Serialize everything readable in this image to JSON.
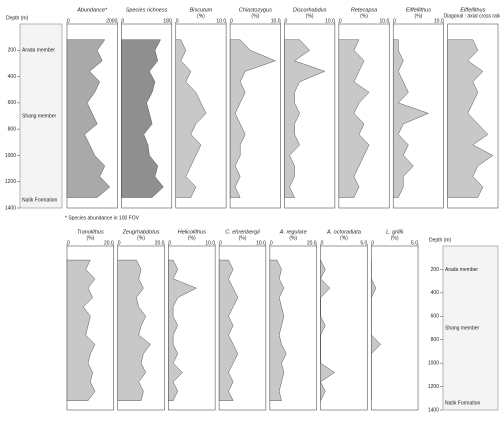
{
  "chart_data": {
    "type": "depth-profile",
    "depth_label": "Depth (m)",
    "ylim": [
      0,
      1400
    ],
    "yticks": [
      200,
      400,
      600,
      800,
      1000,
      1200,
      1400
    ],
    "depth": [
      120,
      200,
      280,
      360,
      440,
      520,
      600,
      680,
      760,
      840,
      920,
      1000,
      1080,
      1160,
      1240,
      1320
    ],
    "lithology": {
      "upper": "Arada member",
      "middle": "Shang member",
      "lower": "Natik Formation"
    },
    "footnote": "* Species abundance in 100 FOV",
    "color": "#c8c8c8",
    "panels": [
      {
        "name": "Abundance*",
        "xlim": [
          0,
          2000
        ],
        "xticks": [
          0,
          2000
        ],
        "color": "#a9a9a9",
        "values": [
          1500,
          1200,
          1400,
          900,
          1300,
          1100,
          800,
          1000,
          1200,
          700,
          900,
          1100,
          1500,
          1300,
          1700,
          1200
        ]
      },
      {
        "name": "Species richness",
        "xlim": [
          0,
          180
        ],
        "xticks": [
          0,
          180
        ],
        "color": "#8f8f8f",
        "values": [
          140,
          120,
          130,
          100,
          120,
          110,
          90,
          100,
          110,
          80,
          95,
          100,
          130,
          120,
          150,
          110
        ]
      },
      {
        "name": "Biscutum",
        "unit": "(%)",
        "xlim": [
          0,
          10
        ],
        "xticks": [
          0,
          {
            "value": 10,
            "label": "10.0"
          }
        ],
        "values": [
          1,
          2,
          1,
          3,
          2,
          4,
          5,
          6,
          4,
          3,
          5,
          4,
          3,
          2,
          4,
          3
        ]
      },
      {
        "name": "Chiastozygus",
        "unit": "(%)",
        "xlim": [
          0,
          10
        ],
        "xticks": [
          0,
          {
            "value": 10,
            "label": "10.0"
          }
        ],
        "values": [
          2,
          4,
          9,
          3,
          2,
          3,
          2,
          1,
          2,
          3,
          2,
          2,
          1,
          2,
          1,
          2
        ]
      },
      {
        "name": "Discorhabdus",
        "unit": "(%)",
        "xlim": [
          0,
          10
        ],
        "xticks": [
          0,
          {
            "value": 10,
            "label": "10.0"
          }
        ],
        "values": [
          3,
          5,
          2,
          8,
          3,
          2,
          2,
          3,
          2,
          2,
          3,
          1,
          2,
          2,
          1,
          2
        ]
      },
      {
        "name": "Retecapsa",
        "unit": "(%)",
        "xlim": [
          0,
          10
        ],
        "xticks": [
          0,
          {
            "value": 10,
            "label": "10.0"
          }
        ],
        "values": [
          4,
          3,
          5,
          4,
          3,
          6,
          4,
          3,
          5,
          4,
          6,
          5,
          4,
          3,
          4,
          3
        ]
      },
      {
        "name": "Eiffellithus",
        "unit": "(%)",
        "xlim": [
          0,
          10
        ],
        "xticks": [
          0,
          {
            "value": 10,
            "label": "10.0"
          }
        ],
        "values": [
          1,
          1,
          2,
          1,
          2,
          3,
          1,
          7,
          2,
          1,
          3,
          2,
          4,
          2,
          2,
          1
        ]
      },
      {
        "name": "Eiffellithus",
        "unit": "Diagonal : axial cross ratio",
        "xlim": [
          0,
          1
        ],
        "xticks": [],
        "values": [
          0.5,
          0.6,
          0.4,
          0.7,
          0.5,
          0.6,
          0.5,
          0.4,
          0.6,
          0.8,
          0.5,
          0.9,
          0.6,
          0.5,
          0.7,
          0.6
        ]
      },
      {
        "name": "Tranolithus",
        "unit": "(%)",
        "xlim": [
          0,
          20
        ],
        "xticks": [
          0,
          {
            "value": 20,
            "label": "20.0"
          }
        ],
        "values": [
          10,
          8,
          12,
          9,
          11,
          7,
          10,
          9,
          8,
          12,
          10,
          9,
          11,
          10,
          12,
          9
        ]
      },
      {
        "name": "Zeugrhabdotus",
        "unit": "(%)",
        "xlim": [
          0,
          20
        ],
        "xticks": [
          0,
          {
            "value": 20,
            "label": "20.0"
          }
        ],
        "values": [
          8,
          10,
          9,
          11,
          8,
          9,
          12,
          10,
          9,
          14,
          11,
          10,
          12,
          9,
          11,
          10
        ]
      },
      {
        "name": "Helicolithus",
        "unit": "(%)",
        "xlim": [
          0,
          10
        ],
        "xticks": [
          0,
          {
            "value": 10,
            "label": "10.0"
          }
        ],
        "values": [
          1,
          2,
          1,
          6,
          2,
          1,
          1,
          2,
          1,
          1,
          2,
          1,
          3,
          1,
          2,
          1
        ]
      },
      {
        "name": "C. ehrenbergii",
        "unit": "(%)",
        "xlim": [
          0,
          10
        ],
        "xticks": [
          0,
          {
            "value": 10,
            "label": "10.0"
          }
        ],
        "values": [
          2,
          3,
          2,
          3,
          4,
          3,
          2,
          3,
          2,
          3,
          4,
          3,
          2,
          3,
          2,
          3
        ]
      },
      {
        "name": "A. regulare",
        "unit": "(%)",
        "xlim": [
          0,
          20
        ],
        "xticks": [
          0,
          {
            "value": 20,
            "label": "20.0"
          }
        ],
        "values": [
          3,
          5,
          4,
          6,
          4,
          5,
          6,
          5,
          4,
          5,
          7,
          5,
          6,
          5,
          4,
          5
        ]
      },
      {
        "name": "A. octoradiata",
        "unit": "(%)",
        "xlim": [
          0,
          5
        ],
        "xticks": [
          0,
          {
            "value": 5,
            "label": "5.0"
          }
        ],
        "values": [
          0,
          0.5,
          0,
          1,
          0,
          0,
          0,
          0.5,
          0,
          0,
          0,
          0,
          1.5,
          0,
          0.5,
          0
        ]
      },
      {
        "name": "L. grillii",
        "unit": "(%)",
        "xlim": [
          0,
          5
        ],
        "xticks": [
          0,
          {
            "value": 5,
            "label": "5.0"
          }
        ],
        "values": [
          0,
          0,
          0,
          0.5,
          0,
          0,
          0,
          0,
          0,
          1,
          0,
          0,
          0,
          0,
          0,
          0
        ]
      }
    ]
  }
}
